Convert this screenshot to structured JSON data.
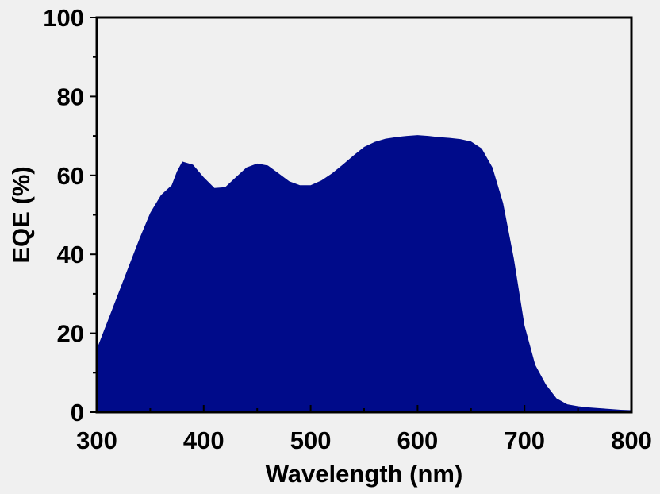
{
  "chart_data": {
    "type": "area",
    "title": "",
    "xlabel": "Wavelength (nm)",
    "ylabel": "EQE (%)",
    "xlim": [
      300,
      800
    ],
    "ylim": [
      0,
      100
    ],
    "x_ticks": [
      "300",
      "400",
      "500",
      "600",
      "700",
      "800"
    ],
    "y_ticks": [
      "0",
      "20",
      "40",
      "60",
      "80",
      "100"
    ],
    "grid": false,
    "fill_color": "#000b8a",
    "series": [
      {
        "x": [
          300,
          310,
          320,
          330,
          340,
          350,
          360,
          370,
          375,
          380,
          390,
          400,
          410,
          420,
          430,
          440,
          450,
          460,
          470,
          480,
          490,
          500,
          510,
          520,
          530,
          540,
          550,
          560,
          570,
          580,
          590,
          600,
          610,
          620,
          630,
          640,
          650,
          660,
          670,
          680,
          690,
          700,
          710,
          720,
          730,
          740,
          750,
          760,
          770,
          780,
          790,
          800
        ],
        "y": [
          16,
          23,
          30,
          37,
          44,
          50.5,
          55,
          57.5,
          61,
          63.5,
          62.7,
          59.5,
          56.8,
          57,
          59.5,
          62,
          63,
          62.5,
          60.5,
          58.5,
          57.5,
          57.5,
          58.7,
          60.5,
          62.7,
          65,
          67.2,
          68.5,
          69.3,
          69.7,
          70,
          70.2,
          70,
          69.7,
          69.5,
          69.2,
          68.6,
          66.8,
          62,
          53,
          39,
          22,
          12,
          7,
          3.5,
          2,
          1.5,
          1.2,
          1,
          0.8,
          0.6,
          0.5
        ]
      }
    ]
  }
}
